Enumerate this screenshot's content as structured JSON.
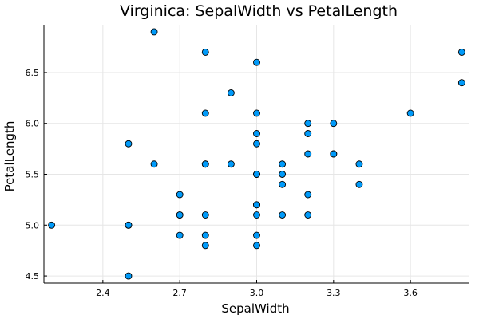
{
  "chart_data": {
    "type": "scatter",
    "title": "Virginica: SepalWidth vs PetalLength",
    "xlabel": "SepalWidth",
    "ylabel": "PetalLength",
    "xlim": [
      2.17,
      3.83
    ],
    "ylim": [
      4.43,
      6.97
    ],
    "xticks": [
      2.4,
      2.7,
      3.0,
      3.3,
      3.6
    ],
    "xtick_labels": [
      "2.4",
      "2.7",
      "3.0",
      "3.3",
      "3.6"
    ],
    "yticks": [
      4.5,
      5.0,
      5.5,
      6.0,
      6.5
    ],
    "ytick_labels": [
      "4.5",
      "5.0",
      "5.5",
      "6.0",
      "6.5"
    ],
    "grid": true,
    "legend": "none",
    "marker_color": "#009af9",
    "points": [
      {
        "x": 2.2,
        "y": 5.0
      },
      {
        "x": 2.5,
        "y": 5.8
      },
      {
        "x": 2.5,
        "y": 5.0
      },
      {
        "x": 2.5,
        "y": 5.0
      },
      {
        "x": 2.5,
        "y": 4.5
      },
      {
        "x": 2.6,
        "y": 6.9
      },
      {
        "x": 2.6,
        "y": 5.6
      },
      {
        "x": 2.7,
        "y": 5.3
      },
      {
        "x": 2.7,
        "y": 5.1
      },
      {
        "x": 2.7,
        "y": 5.1
      },
      {
        "x": 2.7,
        "y": 4.9
      },
      {
        "x": 2.8,
        "y": 6.7
      },
      {
        "x": 2.8,
        "y": 6.1
      },
      {
        "x": 2.8,
        "y": 5.6
      },
      {
        "x": 2.8,
        "y": 5.6
      },
      {
        "x": 2.8,
        "y": 5.1
      },
      {
        "x": 2.8,
        "y": 4.9
      },
      {
        "x": 2.8,
        "y": 4.8
      },
      {
        "x": 2.9,
        "y": 6.3
      },
      {
        "x": 2.9,
        "y": 5.6
      },
      {
        "x": 3.0,
        "y": 6.6
      },
      {
        "x": 3.0,
        "y": 6.1
      },
      {
        "x": 3.0,
        "y": 5.9
      },
      {
        "x": 3.0,
        "y": 5.8
      },
      {
        "x": 3.0,
        "y": 5.5
      },
      {
        "x": 3.0,
        "y": 5.5
      },
      {
        "x": 3.0,
        "y": 5.2
      },
      {
        "x": 3.0,
        "y": 5.2
      },
      {
        "x": 3.0,
        "y": 5.1
      },
      {
        "x": 3.0,
        "y": 4.9
      },
      {
        "x": 3.0,
        "y": 4.8
      },
      {
        "x": 3.1,
        "y": 5.6
      },
      {
        "x": 3.1,
        "y": 5.5
      },
      {
        "x": 3.1,
        "y": 5.4
      },
      {
        "x": 3.1,
        "y": 5.1
      },
      {
        "x": 3.2,
        "y": 6.0
      },
      {
        "x": 3.2,
        "y": 5.9
      },
      {
        "x": 3.2,
        "y": 5.7
      },
      {
        "x": 3.2,
        "y": 5.3
      },
      {
        "x": 3.2,
        "y": 5.1
      },
      {
        "x": 3.3,
        "y": 6.0
      },
      {
        "x": 3.3,
        "y": 5.7
      },
      {
        "x": 3.3,
        "y": 5.7
      },
      {
        "x": 3.4,
        "y": 5.6
      },
      {
        "x": 3.4,
        "y": 5.4
      },
      {
        "x": 3.6,
        "y": 6.1
      },
      {
        "x": 3.8,
        "y": 6.7
      },
      {
        "x": 3.8,
        "y": 6.4
      }
    ]
  }
}
